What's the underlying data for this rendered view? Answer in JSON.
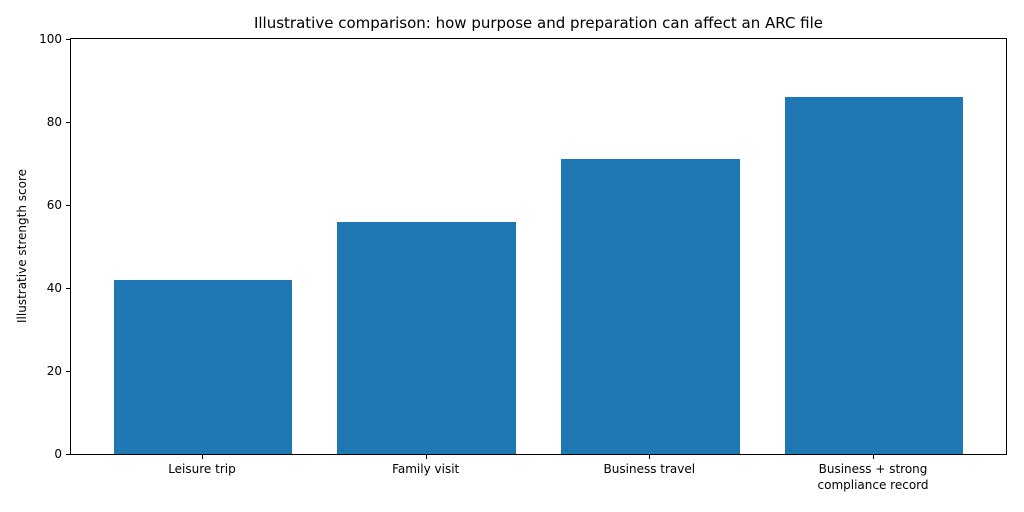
{
  "chart_data": {
    "type": "bar",
    "title": "Illustrative comparison: how purpose and preparation can affect an ARC file",
    "xlabel": "",
    "ylabel": "Illustrative strength score",
    "categories": [
      "Leisure trip",
      "Family visit",
      "Business travel",
      "Business + strong\ncompliance record"
    ],
    "values": [
      42,
      56,
      71,
      86
    ],
    "ylim": [
      0,
      100
    ],
    "yticks": [
      0,
      20,
      40,
      60,
      80,
      100
    ],
    "xlim": [
      -0.59,
      3.59
    ],
    "bar_width_units": 0.8,
    "bar_color": "#1f77b4",
    "axis_color": "#000000",
    "background_color": "#ffffff",
    "grid": false,
    "legend": "none"
  }
}
